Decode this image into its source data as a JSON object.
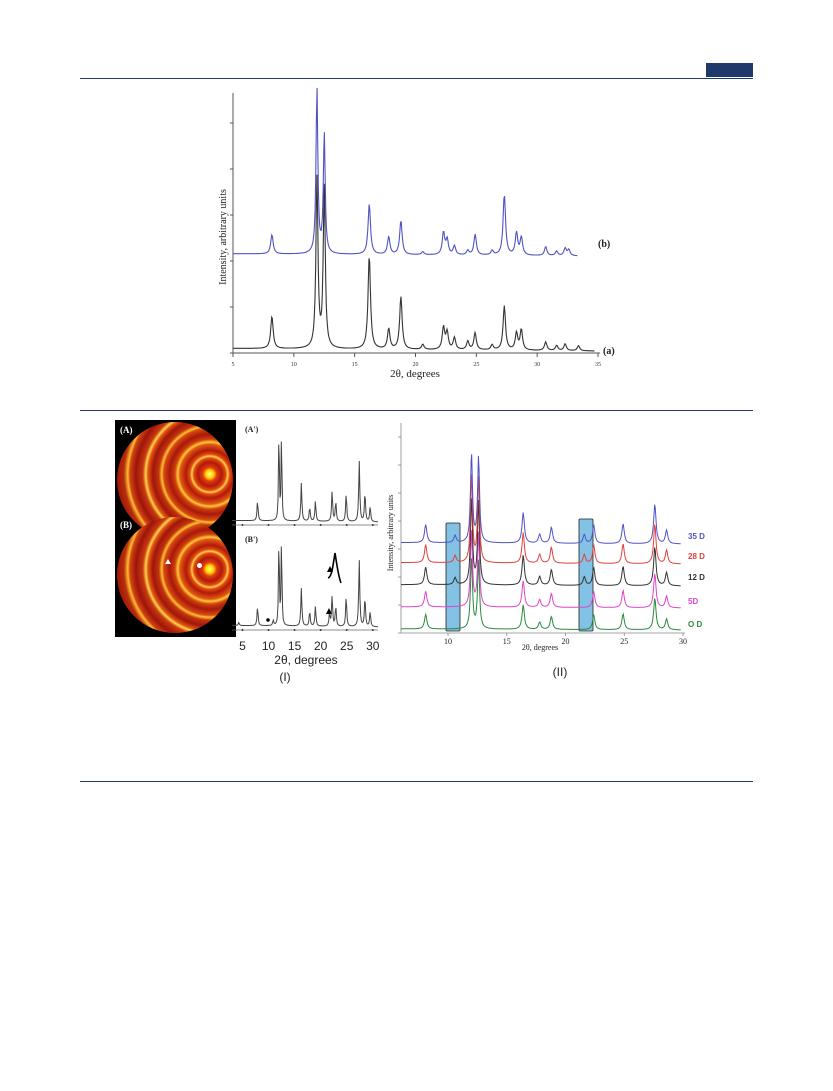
{
  "colors": {
    "rule": "#1f3a6a",
    "blue_trace": "#4f54c4",
    "black_trace": "#333333",
    "red_trace": "#e0413e",
    "magenta_trace": "#dc46c8",
    "green_trace": "#2a8a3c",
    "highlight": "#5aaedc"
  },
  "figure_top": {
    "ylabel": "Intensity, arbitrary units",
    "xlabel": "2θ, degrees",
    "xticks": [
      "5",
      "10",
      "15",
      "20",
      "25",
      "30",
      "35"
    ],
    "labels": {
      "a": "(a)",
      "b": "(b)"
    }
  },
  "figure_bottom": {
    "panel_I": {
      "disc_labels": {
        "A": "(A)",
        "B": "(B)"
      },
      "pattern_labels": {
        "A": "(A')",
        "B": "(B')"
      },
      "xticks": [
        "5",
        "10",
        "15",
        "20",
        "25",
        "30"
      ],
      "xlabel": "2θ, degrees",
      "caption": "(I)"
    },
    "panel_II": {
      "ylabel": "Intensity, arbitrary units",
      "xlabel": "2θ, degrees",
      "xticks": [
        "10",
        "15",
        "20",
        "25",
        "30"
      ],
      "series_labels": [
        "35 D",
        "28 D",
        "12 D",
        "5D",
        "O D"
      ],
      "caption": "(II)"
    }
  },
  "chart_data": [
    {
      "type": "line",
      "xlabel": "2θ, degrees",
      "ylabel": "Intensity, arbitrary units",
      "xlim": [
        5,
        35
      ],
      "series": [
        {
          "name": "(b)",
          "peaks_x": [
            8.2,
            11.9,
            12.5,
            16.2,
            17.8,
            18.8,
            22.3,
            22.6,
            25.0,
            27.3,
            28.3,
            28.7,
            30.7,
            32.3
          ]
        },
        {
          "name": "(a)",
          "peaks_x": [
            8.2,
            11.9,
            12.5,
            16.2,
            17.8,
            18.8,
            22.3,
            22.6,
            25.0,
            27.3,
            28.3,
            28.7,
            30.7,
            32.3
          ]
        }
      ]
    },
    {
      "type": "line",
      "xlabel": "2θ, degrees",
      "xlim": [
        3,
        31
      ],
      "series": [
        {
          "name": "(A')",
          "peaks_x": [
            7.9,
            12.0,
            12.5,
            16.3,
            17.9,
            19.0,
            22.2,
            24.9,
            27.4,
            28.5
          ]
        },
        {
          "name": "(B')",
          "peaks_x": [
            7.9,
            10.9,
            12.0,
            12.5,
            16.3,
            17.9,
            19.0,
            21.7,
            22.2,
            24.9,
            27.4,
            28.5
          ]
        }
      ]
    },
    {
      "type": "line",
      "xlabel": "2θ, degrees",
      "ylabel": "Intensity, arbitrary units",
      "xlim": [
        6,
        30
      ],
      "series": [
        {
          "name": "35 D"
        },
        {
          "name": "28 D"
        },
        {
          "name": "12 D"
        },
        {
          "name": "5D"
        },
        {
          "name": "O D"
        }
      ]
    }
  ]
}
